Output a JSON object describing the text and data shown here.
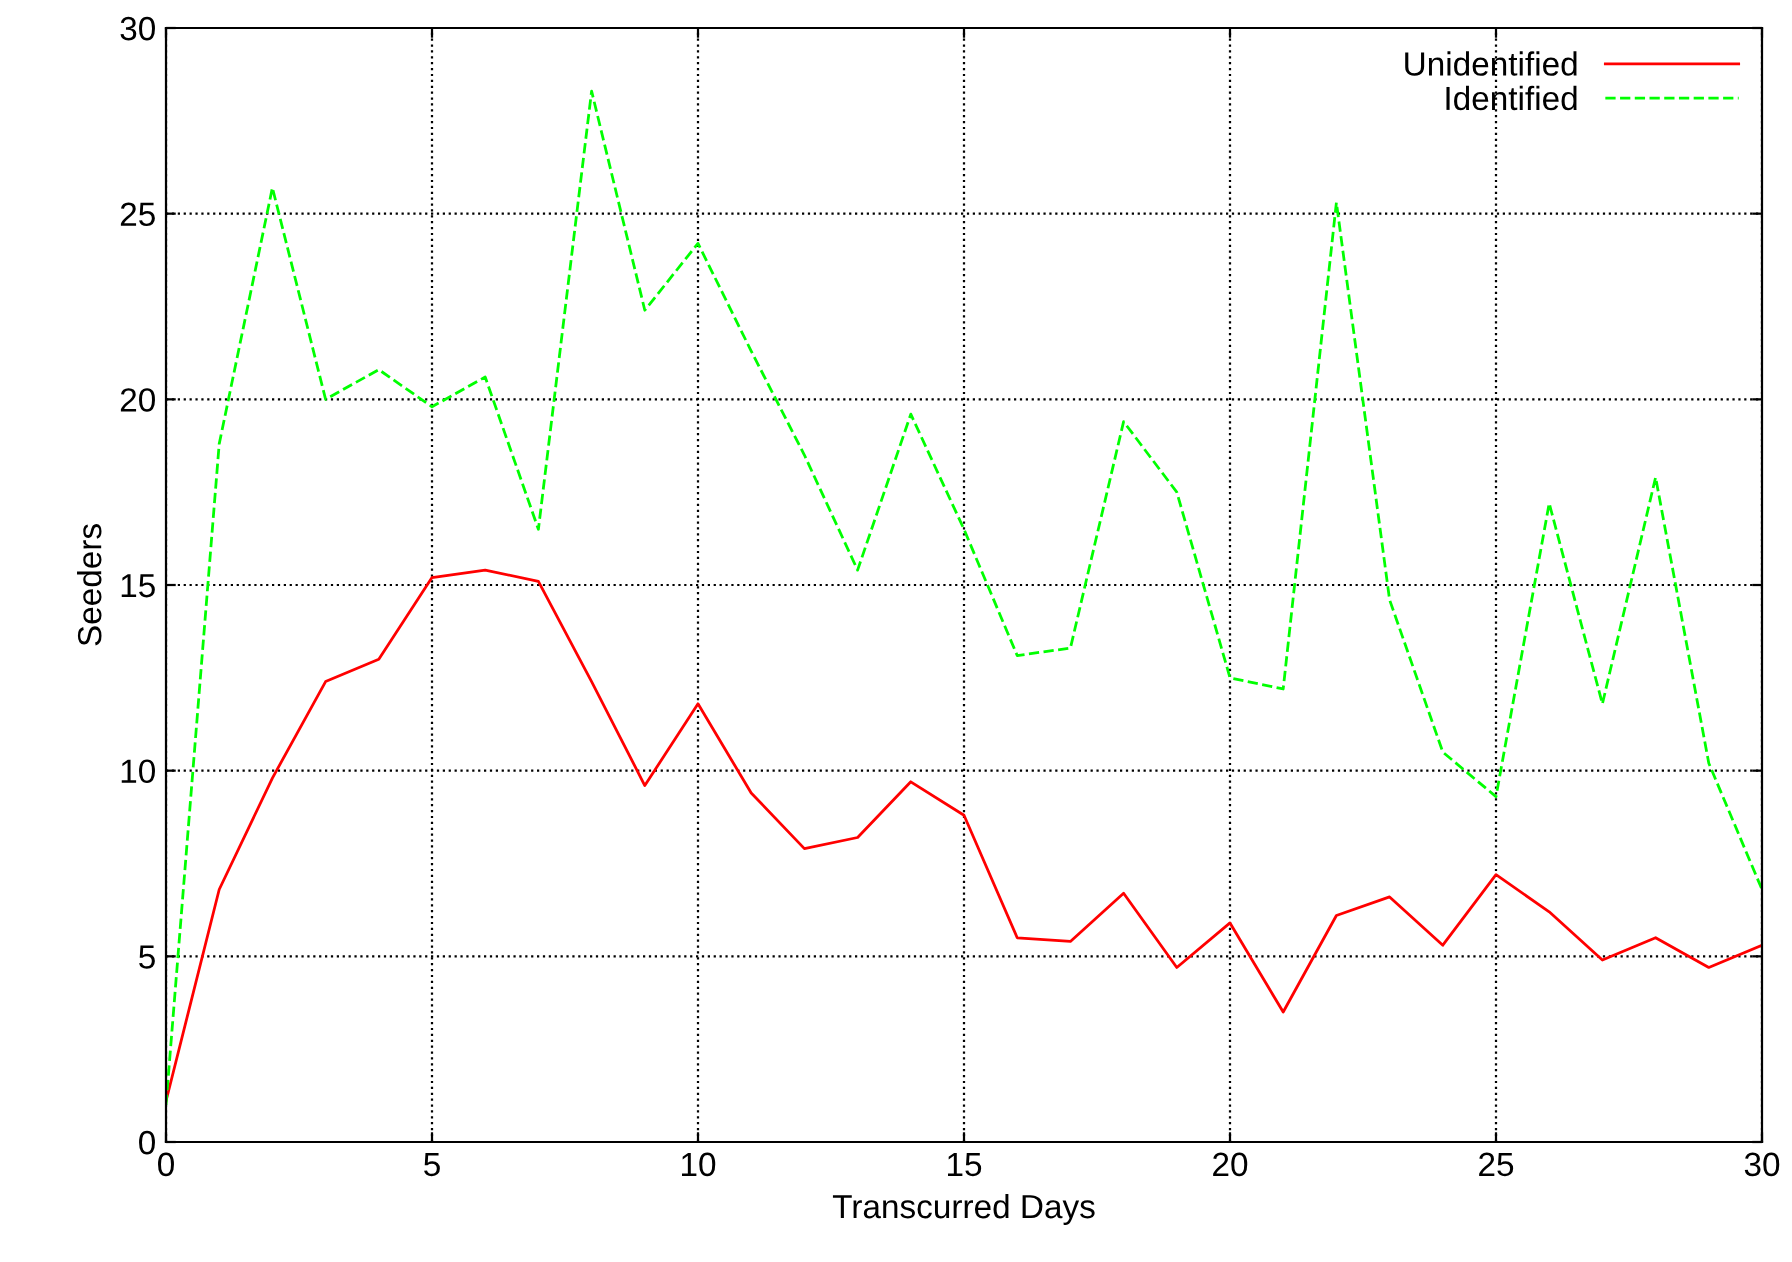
{
  "chart_data": {
    "type": "line",
    "xlabel": "Transcurred Days",
    "ylabel": "Seeders",
    "x": [
      0,
      1,
      2,
      3,
      4,
      5,
      6,
      7,
      8,
      9,
      10,
      11,
      12,
      13,
      14,
      15,
      16,
      17,
      18,
      19,
      20,
      21,
      22,
      23,
      24,
      25,
      26,
      27,
      28,
      29,
      30
    ],
    "series": [
      {
        "name": "Unidentified",
        "color": "#ff0000",
        "line_style": "solid",
        "values": [
          1.1,
          6.8,
          9.8,
          12.4,
          13.0,
          15.2,
          15.4,
          15.1,
          12.4,
          9.6,
          11.8,
          9.4,
          7.9,
          8.2,
          9.7,
          8.8,
          5.5,
          5.4,
          6.7,
          4.7,
          5.9,
          3.5,
          6.1,
          6.6,
          5.3,
          7.2,
          6.2,
          4.9,
          5.5,
          4.7,
          5.3
        ]
      },
      {
        "name": "Identified",
        "color": "#00ff00",
        "line_style": "dashed",
        "values": [
          1.0,
          18.8,
          25.7,
          20.0,
          20.8,
          19.8,
          20.6,
          16.5,
          28.3,
          22.4,
          24.2,
          21.3,
          18.5,
          15.4,
          19.6,
          16.5,
          13.1,
          13.3,
          19.4,
          17.5,
          12.5,
          12.2,
          25.3,
          14.6,
          10.5,
          9.3,
          17.2,
          11.8,
          17.9,
          10.2,
          6.8
        ]
      }
    ],
    "xlim": [
      0,
      30
    ],
    "xticks": [
      0,
      5,
      10,
      15,
      20,
      25,
      30
    ],
    "ylim": [
      0,
      30
    ],
    "yticks": [
      0,
      5,
      10,
      15,
      20,
      25,
      30
    ],
    "grid": true,
    "legend": "top right",
    "marker": "none"
  }
}
